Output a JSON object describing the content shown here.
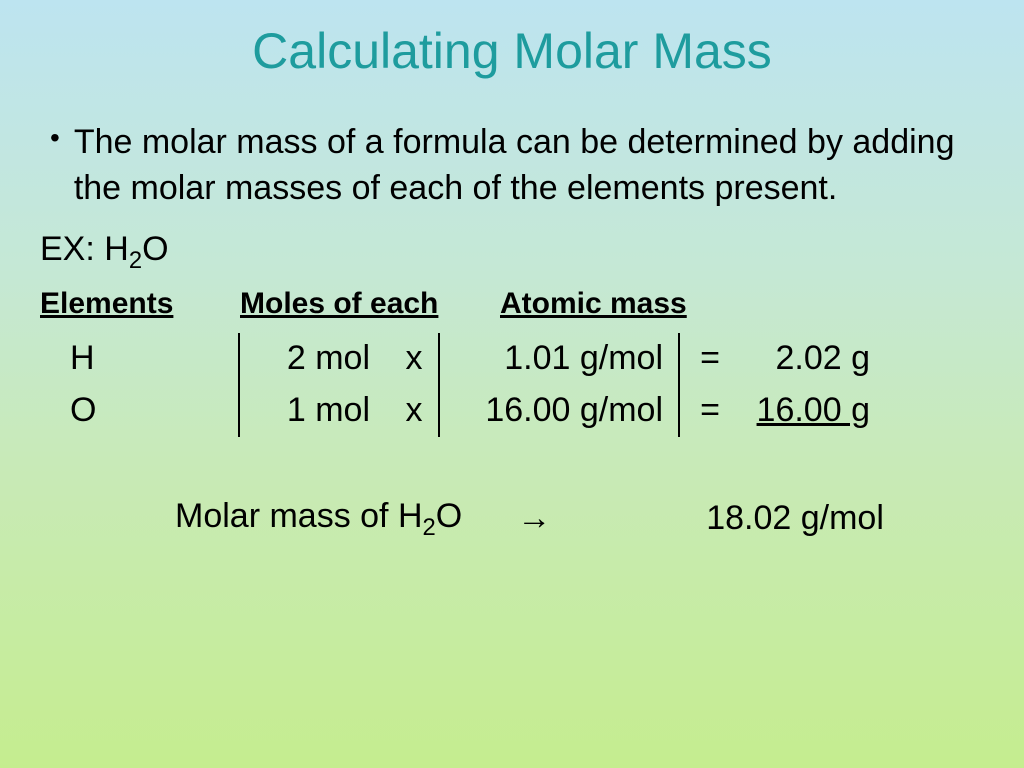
{
  "slide": {
    "title": "Calculating Molar Mass",
    "title_color": "#1e9c9e",
    "title_fontsize": 50,
    "body_fontsize": 34,
    "background_gradient": [
      "#bde4f0",
      "#c5e8d5",
      "#c8eab8",
      "#c5ed8f"
    ],
    "bullet": {
      "text": "The molar mass of a formula can be determined by adding the molar masses of each of the elements present."
    },
    "example": {
      "label_prefix": "EX: H",
      "label_sub": "2",
      "label_suffix": "O"
    },
    "headers": {
      "col1": "Elements",
      "col2": "Moles of each",
      "col3": "Atomic mass"
    },
    "table": {
      "rows": [
        {
          "element": "H",
          "moles": "2 mol",
          "op": "x",
          "atomic_mass": "1.01 g/mol",
          "eq": "=",
          "result": "2.02 g",
          "result_underline": false
        },
        {
          "element": "O",
          "moles": "1 mol",
          "op": "x",
          "atomic_mass": "16.00 g/mol",
          "eq": "=",
          "result": "16.00 g",
          "result_underline": true
        }
      ],
      "border_color": "#000000"
    },
    "final": {
      "label_prefix": "Molar mass of H",
      "label_sub": "2",
      "label_suffix": "O",
      "arrow": "→",
      "value": "18.02 g/mol"
    }
  }
}
